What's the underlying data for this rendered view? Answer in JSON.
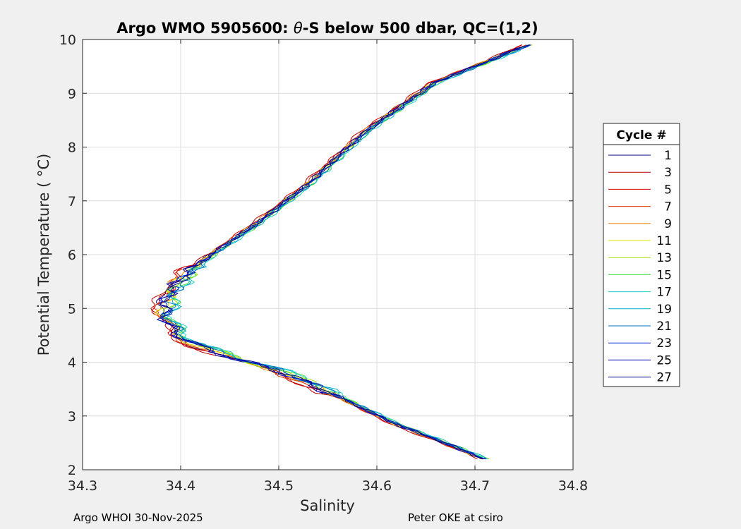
{
  "chart_data": {
    "type": "line",
    "title": "Argo WMO 5905600: θ-S below 500 dbar,  QC=(1,2)",
    "title_prefix": "Argo WMO 5905600: ",
    "title_theta": "θ",
    "title_suffix": "-S below 500 dbar,  QC=(1,2)",
    "xlabel": "Salinity",
    "ylabel": "Potential Temperature ( °C)",
    "xlim": [
      34.3,
      34.8
    ],
    "ylim": [
      2,
      10
    ],
    "xticks": [
      "34.3",
      "34.4",
      "34.5",
      "34.6",
      "34.7",
      "34.8"
    ],
    "yticks": [
      "2",
      "3",
      "4",
      "5",
      "6",
      "7",
      "8",
      "9",
      "10"
    ],
    "grid": true,
    "legend_title": "Cycle #",
    "legend_position": "right",
    "mean_profile": [
      [
        34.71,
        2.2
      ],
      [
        34.67,
        2.5
      ],
      [
        34.62,
        2.85
      ],
      [
        34.58,
        3.2
      ],
      [
        34.54,
        3.55
      ],
      [
        34.5,
        3.85
      ],
      [
        34.46,
        4.05
      ],
      [
        34.42,
        4.3
      ],
      [
        34.395,
        4.55
      ],
      [
        34.385,
        4.9
      ],
      [
        34.39,
        5.3
      ],
      [
        34.41,
        5.7
      ],
      [
        34.44,
        6.1
      ],
      [
        34.48,
        6.6
      ],
      [
        34.53,
        7.3
      ],
      [
        34.59,
        8.3
      ],
      [
        34.66,
        9.2
      ],
      [
        34.755,
        9.9
      ]
    ],
    "series": [
      {
        "name": "1",
        "color": "#000080",
        "offset": -0.004
      },
      {
        "name": "3",
        "color": "#b40000",
        "offset": -0.01
      },
      {
        "name": "5",
        "color": "#d20000",
        "offset": -0.008
      },
      {
        "name": "7",
        "color": "#e03000",
        "offset": -0.006
      },
      {
        "name": "9",
        "color": "#f08000",
        "offset": -0.004
      },
      {
        "name": "11",
        "color": "#e0e000",
        "offset": -0.002
      },
      {
        "name": "13",
        "color": "#a0e000",
        "offset": 0.002
      },
      {
        "name": "15",
        "color": "#40e040",
        "offset": 0.004
      },
      {
        "name": "17",
        "color": "#20d0c0",
        "offset": 0.006
      },
      {
        "name": "19",
        "color": "#00b0d0",
        "offset": 0.005
      },
      {
        "name": "21",
        "color": "#0070c0",
        "offset": 0.002
      },
      {
        "name": "23",
        "color": "#0020d0",
        "offset": -0.002
      },
      {
        "name": "25",
        "color": "#0000b0",
        "offset": -0.003
      },
      {
        "name": "27",
        "color": "#000090",
        "offset": -0.001
      }
    ]
  },
  "footer": {
    "left": "Argo WHOI 30-Nov-2025",
    "right": "Peter OKE at csiro"
  }
}
